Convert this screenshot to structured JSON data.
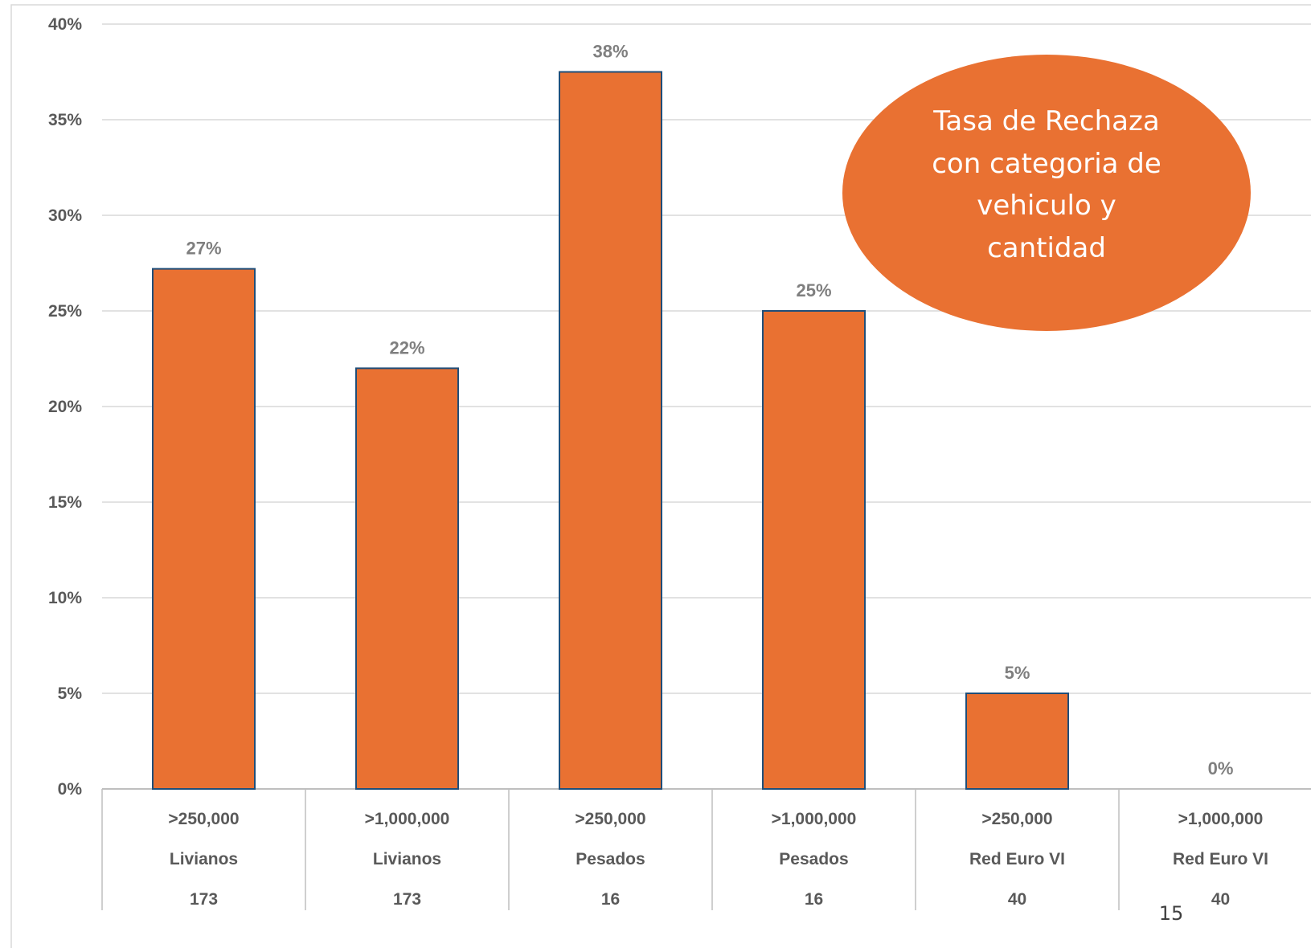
{
  "colors": {
    "bar_fill": "#E97132",
    "bar_stroke": "#1F4E79",
    "gridline": "#D9D9D9",
    "axis": "#BFBFBF",
    "callout_fill": "#E97132",
    "callout_text": "#FFFFFF"
  },
  "chart_data": {
    "type": "bar",
    "ylim": [
      0,
      40
    ],
    "y_ticks": [
      "0%",
      "5%",
      "10%",
      "15%",
      "20%",
      "25%",
      "30%",
      "35%",
      "40%"
    ],
    "y_tick_values": [
      0,
      5,
      10,
      15,
      20,
      25,
      30,
      35,
      40
    ],
    "grid": true,
    "legend": "none",
    "values": [
      27.2,
      22,
      37.5,
      25,
      5,
      0
    ],
    "value_labels": [
      "27%",
      "22%",
      "38%",
      "25%",
      "5%",
      "0%"
    ],
    "category_levels": [
      [
        ">250,000",
        ">1,000,000",
        ">250,000",
        ">1,000,000",
        ">250,000",
        ">1,000,000"
      ],
      [
        "Livianos",
        "Livianos",
        "Pesados",
        "Pesados",
        "Red Euro VI",
        "Red Euro VI"
      ],
      [
        "173",
        "173",
        "16",
        "16",
        "40",
        "40"
      ]
    ]
  },
  "callout": {
    "lines": [
      "Tasa de Rechaza",
      "con categoria de",
      "vehiculo y",
      "cantidad"
    ]
  },
  "slide_number": "15"
}
